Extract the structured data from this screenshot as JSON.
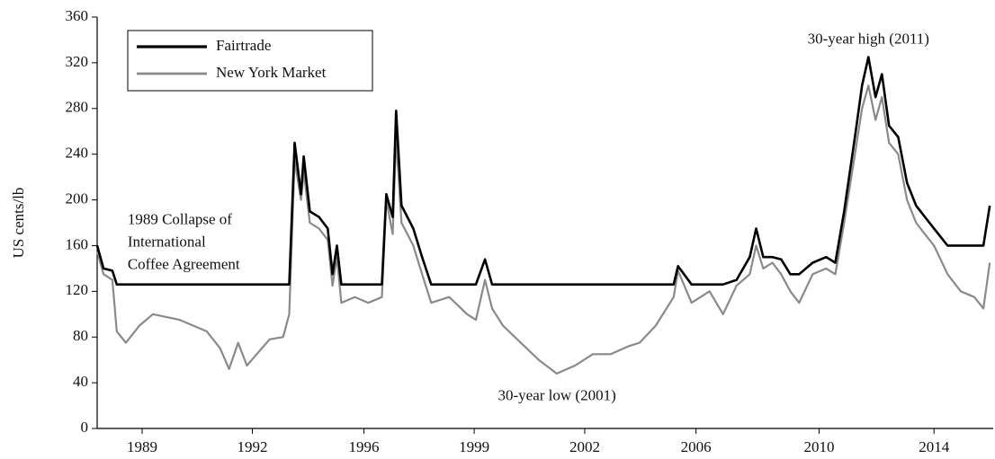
{
  "chart_data": {
    "type": "line",
    "y_label": "US cents/lb",
    "xlim": [
      1988.6,
      2015.1
    ],
    "xticks": [
      {
        "value": 1989.93,
        "label": "1989"
      },
      {
        "value": 1993.19,
        "label": "1992"
      },
      {
        "value": 1996.49,
        "label": "1996"
      },
      {
        "value": 1999.75,
        "label": "1999"
      },
      {
        "value": 2003.02,
        "label": "2002"
      },
      {
        "value": 2006.31,
        "label": "2006"
      },
      {
        "value": 2009.95,
        "label": "2010"
      },
      {
        "value": 2013.35,
        "label": "2014"
      }
    ],
    "ylim": [
      0,
      360
    ],
    "yticks": [
      0,
      40,
      80,
      120,
      160,
      200,
      240,
      280,
      320,
      360
    ],
    "legend": "upper left",
    "annotations": [
      {
        "lines": [
          "30-year high (2011)"
        ],
        "x": 2011.41,
        "y": 340
      },
      {
        "lines": [
          "1989 Collapse of",
          "International",
          "Coffee Agreement"
        ],
        "x": 1989.5,
        "y": 182
      },
      {
        "lines": [
          "30-year low (2001)"
        ],
        "x": 2002.2,
        "y": 28
      }
    ],
    "x": [
      1988.6,
      1988.79,
      1989.05,
      1989.18,
      1989.45,
      1989.85,
      1990.25,
      1991.04,
      1991.84,
      1992.24,
      1992.5,
      1992.77,
      1993.03,
      1993.17,
      1993.7,
      1994.1,
      1994.28,
      1994.44,
      1994.63,
      1994.71,
      1994.89,
      1995.16,
      1995.42,
      1995.56,
      1995.69,
      1995.82,
      1996.22,
      1996.62,
      1997.02,
      1997.15,
      1997.34,
      1997.44,
      1997.6,
      1997.95,
      1998.21,
      1998.48,
      1999.01,
      1999.54,
      1999.8,
      2000.07,
      2000.28,
      2000.6,
      2001.13,
      2001.66,
      2002.19,
      2002.73,
      2003.26,
      2003.79,
      2004.32,
      2004.64,
      2005.12,
      2005.65,
      2005.78,
      2006.18,
      2006.71,
      2007.11,
      2007.51,
      2007.9,
      2008.09,
      2008.3,
      2008.57,
      2008.83,
      2009.1,
      2009.36,
      2009.76,
      2010.16,
      2010.43,
      2010.69,
      2011.01,
      2011.22,
      2011.41,
      2011.62,
      2011.81,
      2012.02,
      2012.29,
      2012.55,
      2012.82,
      2013.08,
      2013.35,
      2013.75,
      2014.14,
      2014.54,
      2014.81,
      2015.0
    ],
    "series": [
      {
        "name": "Fairtrade",
        "color": "#000000",
        "width": 2.6,
        "values": [
          160,
          140,
          138,
          126,
          126,
          126,
          126,
          126,
          126,
          126,
          126,
          126,
          126,
          126,
          126,
          126,
          126,
          250,
          205,
          238,
          190,
          185,
          175,
          135,
          160,
          126,
          126,
          126,
          126,
          205,
          185,
          278,
          195,
          175,
          150,
          126,
          126,
          126,
          126,
          148,
          126,
          126,
          126,
          126,
          126,
          126,
          126,
          126,
          126,
          126,
          126,
          126,
          142,
          126,
          126,
          126,
          130,
          150,
          175,
          150,
          150,
          148,
          135,
          135,
          145,
          150,
          145,
          190,
          255,
          300,
          325,
          290,
          310,
          265,
          255,
          215,
          195,
          185,
          175,
          160,
          160,
          160,
          160,
          195
        ]
      },
      {
        "name": "New York Market",
        "color": "#8a8a8a",
        "width": 2.2,
        "values": [
          155,
          135,
          130,
          85,
          75,
          90,
          100,
          95,
          85,
          70,
          52,
          75,
          55,
          60,
          78,
          80,
          100,
          235,
          200,
          225,
          180,
          175,
          165,
          125,
          150,
          110,
          115,
          110,
          115,
          200,
          170,
          255,
          180,
          160,
          135,
          110,
          115,
          100,
          95,
          130,
          105,
          90,
          75,
          60,
          48,
          55,
          65,
          65,
          72,
          75,
          90,
          115,
          138,
          110,
          120,
          100,
          125,
          135,
          160,
          140,
          145,
          135,
          120,
          110,
          135,
          140,
          135,
          180,
          240,
          280,
          300,
          270,
          290,
          250,
          240,
          200,
          180,
          170,
          160,
          135,
          120,
          115,
          105,
          145
        ]
      }
    ]
  }
}
